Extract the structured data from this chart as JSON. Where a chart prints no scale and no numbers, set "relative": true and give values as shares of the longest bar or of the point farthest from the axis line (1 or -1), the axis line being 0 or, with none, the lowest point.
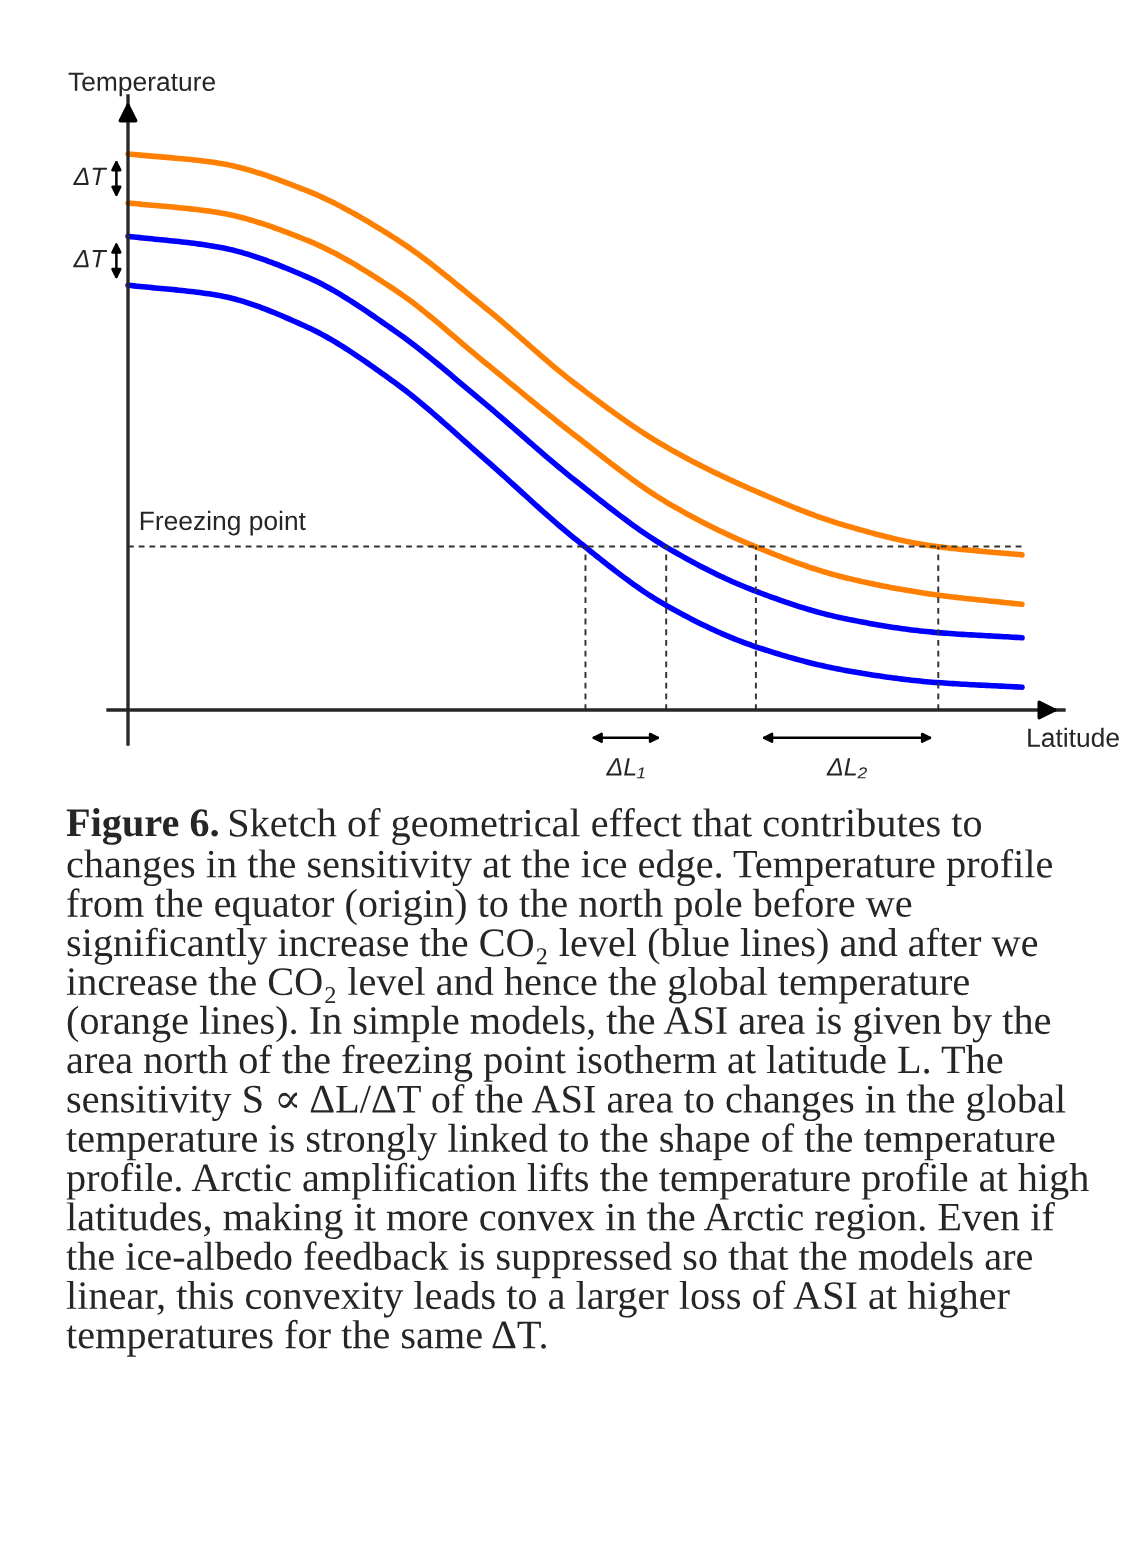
{
  "chart_data": {
    "type": "line",
    "relative": true,
    "xlabel": "Latitude",
    "ylabel": "Temperature",
    "categories": [
      null,
      null,
      null,
      null,
      null,
      null,
      null,
      null,
      null,
      null,
      null
    ],
    "series": [
      {
        "color": "#ff8000",
        "values": [
          1.0,
          0.984,
          0.934,
          0.847,
          0.723,
          0.587,
          0.475,
          0.395,
          0.333,
          0.295,
          0.279
        ]
      },
      {
        "color": "#ff8000",
        "values": [
          0.912,
          0.895,
          0.845,
          0.754,
          0.624,
          0.494,
          0.376,
          0.295,
          0.239,
          0.208,
          0.19
        ]
      },
      {
        "color": "#0000ff",
        "values": [
          0.852,
          0.833,
          0.779,
          0.68,
          0.55,
          0.413,
          0.295,
          0.215,
          0.165,
          0.14,
          0.13
        ]
      },
      {
        "color": "#0000ff",
        "values": [
          0.764,
          0.746,
          0.689,
          0.587,
          0.45,
          0.308,
          0.19,
          0.115,
          0.072,
          0.05,
          0.041
        ]
      }
    ],
    "ref_lines": [
      {
        "axis": "y",
        "value": 0.294,
        "label": "Freezing point",
        "color": "#333333",
        "line_style": "dashed"
      }
    ],
    "annotations": [
      "ΔT",
      "ΔT",
      "ΔL₁",
      "ΔL₂",
      "Figure 6.",
      "Sketch of geometrical effect that contributes to changes in the sensitivity at the ice edge. Temperature profile from the equator (origin) to the north pole before we significantly increase the CO₂ level (blue lines) and after we increase the CO₂ level and hence the global temperature (orange lines). In simple models, the ASI area is given by the area north of the freezing point isotherm at latitude L. The sensitivity S ∝ ΔL/ΔT of the ASI area to changes in the global temperature is strongly linked to the shape of the temperature profile. Arctic amplification lifts the temperature profile at high latitudes, making it more convex in the Arctic region. Even if the ice-albedo feedback is suppressed so that the models are linear, this convexity leads to a larger loss of ASI at higher temperatures for the same ΔT."
    ],
    "legend": false,
    "marker": "none",
    "line_style": "solid"
  }
}
